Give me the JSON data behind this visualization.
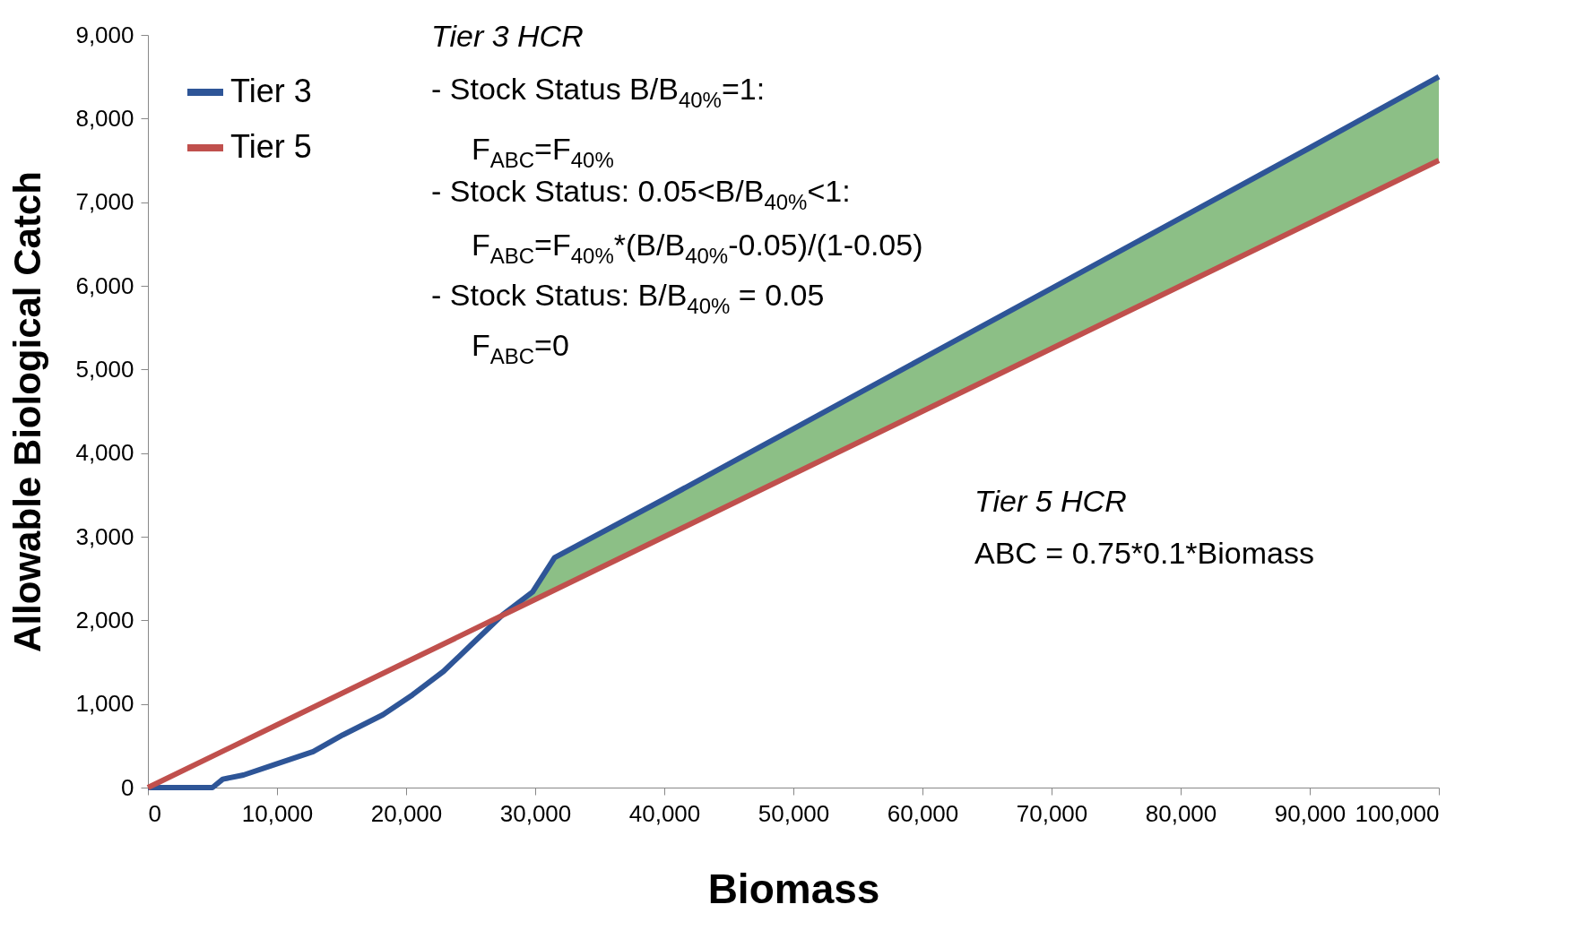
{
  "chart_data": {
    "type": "line",
    "xlabel": "Biomass",
    "ylabel": "Allowable Biological Catch",
    "xlim": [
      0,
      100000
    ],
    "ylim": [
      0,
      9000
    ],
    "xticks": [
      0,
      {
        "value": 10000,
        "label": "10,000"
      },
      {
        "value": 20000,
        "label": "20,000"
      },
      {
        "value": 30000,
        "label": "30,000"
      },
      {
        "value": 40000,
        "label": "40,000"
      },
      {
        "value": 50000,
        "label": "50,000"
      },
      {
        "value": 60000,
        "label": "60,000"
      },
      {
        "value": 70000,
        "label": "70,000"
      },
      {
        "value": 80000,
        "label": "80,000"
      },
      {
        "value": 90000,
        "label": "90,000"
      },
      {
        "value": 100000,
        "label": "100,000"
      }
    ],
    "yticks": [
      0,
      {
        "value": 1000,
        "label": "1,000"
      },
      {
        "value": 2000,
        "label": "2,000"
      },
      {
        "value": 3000,
        "label": "3,000"
      },
      {
        "value": 4000,
        "label": "4,000"
      },
      {
        "value": 5000,
        "label": "5,000"
      },
      {
        "value": 6000,
        "label": "6,000"
      },
      {
        "value": 7000,
        "label": "7,000"
      },
      {
        "value": 8000,
        "label": "8,000"
      },
      {
        "value": 9000,
        "label": "9,000"
      }
    ],
    "grid": false,
    "legend": "top left",
    "marker": "none",
    "line_style": "solid",
    "series": [
      {
        "name": "Tier 3",
        "color": "#2e5597",
        "x": [
          0,
          5000,
          5800,
          7400,
          9700,
          12800,
          15100,
          18200,
          20500,
          22900,
          25200,
          27500,
          29800,
          31500,
          40000,
          50000,
          60000,
          70000,
          80000,
          90000,
          100000
        ],
        "values": [
          0,
          0,
          100,
          150,
          270,
          430,
          630,
          870,
          1110,
          1390,
          1730,
          2070,
          2340,
          2750,
          3450,
          4290,
          5130,
          5970,
          6810,
          7650,
          8500
        ],
        "lower": [
          null,
          null,
          null,
          null,
          null,
          null,
          null,
          null,
          null,
          null,
          null,
          2062,
          2235,
          2363,
          3000,
          3750,
          4500,
          5250,
          6000,
          6750,
          7500
        ],
        "upper": [
          null,
          null,
          null,
          null,
          null,
          null,
          null,
          null,
          null,
          null,
          null,
          2070,
          2340,
          2750,
          3450,
          4290,
          5130,
          5970,
          6810,
          7650,
          8500
        ]
      },
      {
        "name": "Tier 5",
        "color": "#c0504d",
        "x": [
          0,
          10000,
          20000,
          30000,
          40000,
          50000,
          60000,
          70000,
          80000,
          90000,
          100000
        ],
        "values": [
          0,
          750,
          1500,
          2250,
          3000,
          3750,
          4500,
          5250,
          6000,
          6750,
          7500
        ]
      }
    ],
    "annotations": [
      "Tier 3 HCR",
      "- Stock Status B/B$_{40%}$=1:",
      "F$_{ABC}$=F$_{40%}$",
      "- Stock Status: 0.05<B/B$_{40%}$<1:",
      "F$_{ABC}$=F$_{40%}$*(B/B$_{40%}$-0.05)/(1-0.05)",
      "- Stock Status: B/B$_{40%}$ = 0.05",
      "F$_{ABC}$=0",
      "Tier 5 HCR",
      "ABC = 0.75*0.1*Biomass"
    ]
  }
}
